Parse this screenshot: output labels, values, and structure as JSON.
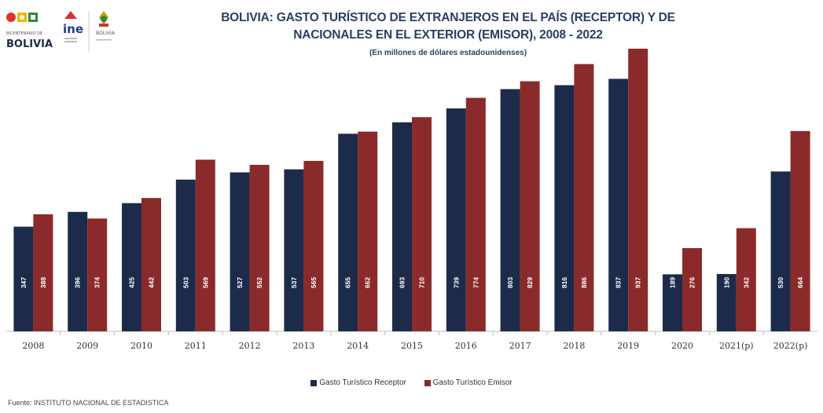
{
  "logos": {
    "bicentenario_text": "BICENTENARIO DE",
    "bolivia_text": "BOLIVIA",
    "ine_text": "ine",
    "estado_text": "BOLIVIA"
  },
  "colors": {
    "receptor": "#1c2b4a",
    "emisor": "#8b2a2a",
    "axis": "#bfbfbf",
    "title": "#2c3e63"
  },
  "chart_data": {
    "type": "bar",
    "title": "BOLIVIA: GASTO TURÍSTICO DE EXTRANJEROS EN EL PAÍS (RECEPTOR) Y DE NACIONALES EN EL EXTERIOR (EMISOR), 2008 - 2022",
    "title_line1": "BOLIVIA: GASTO TURÍSTICO DE EXTRANJEROS EN EL PAÍS (RECEPTOR) Y DE",
    "title_line2": "NACIONALES EN EL EXTERIOR (EMISOR), 2008 - 2022",
    "subtitle": "(En millones de dólares estadounidenses)",
    "categories": [
      "2008",
      "2009",
      "2010",
      "2011",
      "2012",
      "2013",
      "2014",
      "2015",
      "2016",
      "2017",
      "2018",
      "2019",
      "2020",
      "2021(p)",
      "2022(p)"
    ],
    "series": [
      {
        "name": "Gasto Turístico Receptor",
        "values": [
          347,
          396,
          425,
          503,
          527,
          537,
          655,
          693,
          739,
          803,
          816,
          837,
          189,
          190,
          530
        ]
      },
      {
        "name": "Gasto Turístico Emisor",
        "values": [
          388,
          374,
          442,
          569,
          552,
          565,
          662,
          710,
          774,
          829,
          886,
          937,
          276,
          342,
          664
        ]
      }
    ],
    "ylim": [
      0,
      937
    ],
    "grid": false,
    "legend": "bottom-center",
    "source": "Fuente: INSTITUTO NACIONAL DE ESTADISTICA"
  }
}
